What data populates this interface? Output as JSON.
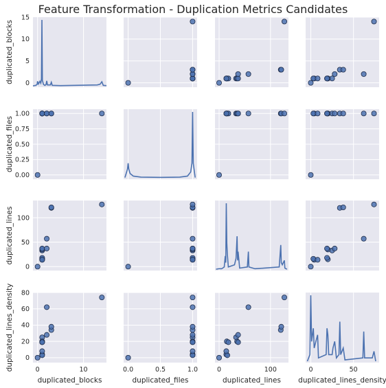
{
  "title": "Feature Transformation - Duplication Metrics Candidates",
  "chart_data": {
    "type": "scatter",
    "variables": [
      "duplicated_blocks",
      "duplicated_files",
      "duplicated_lines",
      "duplicated_lines_density"
    ],
    "axes": {
      "duplicated_blocks": {
        "range": [
          -1,
          15
        ],
        "ticks": [
          {
            "v": 0,
            "label": "0"
          },
          {
            "v": 10,
            "label": "10"
          }
        ],
        "y_ticks": [
          {
            "v": 0,
            "label": "0"
          },
          {
            "v": 5,
            "label": "5"
          },
          {
            "v": 10,
            "label": "10"
          },
          {
            "v": 15,
            "label": "15"
          }
        ]
      },
      "duplicated_files": {
        "range": [
          -0.07,
          1.07
        ],
        "ticks": [
          {
            "v": 0,
            "label": "0.0"
          },
          {
            "v": 0.5,
            "label": "0.5"
          },
          {
            "v": 1,
            "label": "1.0"
          }
        ],
        "y_ticks": [
          {
            "v": 0,
            "label": "0.00"
          },
          {
            "v": 0.25,
            "label": "0.25"
          },
          {
            "v": 0.5,
            "label": "0.50"
          },
          {
            "v": 0.75,
            "label": "0.75"
          },
          {
            "v": 1,
            "label": "1.00"
          }
        ]
      },
      "duplicated_lines": {
        "range": [
          -8,
          135
        ],
        "ticks": [
          {
            "v": 0,
            "label": "0"
          },
          {
            "v": 100,
            "label": "100"
          }
        ],
        "y_ticks": [
          {
            "v": 0,
            "label": "0"
          },
          {
            "v": 50,
            "label": "50"
          },
          {
            "v": 100,
            "label": "100"
          }
        ]
      },
      "duplicated_lines_density": {
        "range": [
          -6,
          80
        ],
        "ticks": [
          {
            "v": 0,
            "label": "0"
          },
          {
            "v": 50,
            "label": "50"
          }
        ],
        "y_ticks": [
          {
            "v": 0,
            "label": "0"
          },
          {
            "v": 20,
            "label": "20"
          },
          {
            "v": 40,
            "label": "40"
          },
          {
            "v": 60,
            "label": "60"
          },
          {
            "v": 80,
            "label": "80"
          }
        ]
      }
    },
    "points": [
      [
        0,
        0,
        0,
        0
      ],
      [
        1,
        1,
        14,
        4
      ],
      [
        1,
        1,
        15,
        20
      ],
      [
        1,
        1,
        16,
        3
      ],
      [
        1,
        1,
        18,
        19
      ],
      [
        1,
        1,
        33,
        25
      ],
      [
        1,
        1,
        35,
        20
      ],
      [
        1,
        1,
        37,
        19
      ],
      [
        1,
        1,
        14,
        8
      ],
      [
        2,
        1,
        37,
        28
      ],
      [
        2,
        1,
        57,
        62
      ],
      [
        3,
        1,
        120,
        34
      ],
      [
        3,
        1,
        121,
        38
      ],
      [
        14,
        1,
        127,
        74
      ]
    ],
    "diagonal_kde": {
      "duplicated_blocks": [
        [
          -1,
          0
        ],
        [
          -0.4,
          0.1
        ],
        [
          -0.1,
          0.3
        ],
        [
          0,
          1
        ],
        [
          0.2,
          0.4
        ],
        [
          0.5,
          1
        ],
        [
          0.7,
          0.6
        ],
        [
          0.85,
          1.5
        ],
        [
          0.95,
          14.6
        ],
        [
          1.05,
          1.2
        ],
        [
          1.3,
          0.3
        ],
        [
          1.6,
          0.1
        ],
        [
          1.85,
          0.3
        ],
        [
          2,
          1.1
        ],
        [
          2.15,
          0.2
        ],
        [
          2.8,
          0.2
        ],
        [
          3,
          0.8
        ],
        [
          3.2,
          0.1
        ],
        [
          5,
          0.05
        ],
        [
          13,
          0.2
        ],
        [
          13.6,
          0.35
        ],
        [
          14,
          0.9
        ],
        [
          14.3,
          0.1
        ],
        [
          15,
          0.05
        ]
      ],
      "duplicated_files": [
        [
          -0.05,
          0.02
        ],
        [
          -0.01,
          0.6
        ],
        [
          0,
          1.0
        ],
        [
          0.01,
          0.6
        ],
        [
          0.03,
          0.3
        ],
        [
          0.08,
          0.12
        ],
        [
          0.2,
          0.05
        ],
        [
          0.5,
          0.03
        ],
        [
          0.8,
          0.05
        ],
        [
          0.92,
          0.12
        ],
        [
          0.97,
          0.4
        ],
        [
          0.99,
          1.0
        ],
        [
          1,
          4.5
        ],
        [
          1.01,
          1.0
        ],
        [
          1.04,
          0.02
        ]
      ],
      "duplicated_lines": [
        [
          -6,
          0
        ],
        [
          0,
          0.02
        ],
        [
          5,
          0.02
        ],
        [
          10,
          0.1
        ],
        [
          12,
          0.6
        ],
        [
          13,
          0.3
        ],
        [
          14,
          3.0
        ],
        [
          15,
          1.2
        ],
        [
          16,
          0.7
        ],
        [
          18,
          0.1
        ],
        [
          30,
          0.2
        ],
        [
          33,
          0.5
        ],
        [
          35,
          1.5
        ],
        [
          36,
          0.4
        ],
        [
          37,
          0.8
        ],
        [
          40,
          0.05
        ],
        [
          55,
          0.1
        ],
        [
          57,
          0.8
        ],
        [
          58,
          0.1
        ],
        [
          70,
          0.02
        ],
        [
          117,
          0.1
        ],
        [
          120,
          1.1
        ],
        [
          121,
          0.3
        ],
        [
          123,
          0.2
        ],
        [
          127,
          0.4
        ],
        [
          128,
          0.05
        ],
        [
          132,
          0
        ]
      ],
      "duplicated_lines_density": [
        [
          -4,
          0
        ],
        [
          -1,
          0.1
        ],
        [
          0,
          1.0
        ],
        [
          1,
          0.3
        ],
        [
          3,
          0.5
        ],
        [
          4,
          0.2
        ],
        [
          8,
          0.4
        ],
        [
          9,
          0.05
        ],
        [
          18,
          0.1
        ],
        [
          19,
          0.5
        ],
        [
          20,
          0.4
        ],
        [
          21,
          0.1
        ],
        [
          25,
          0.1
        ],
        [
          26,
          0.2
        ],
        [
          28,
          0.3
        ],
        [
          30,
          0.05
        ],
        [
          33,
          0.1
        ],
        [
          34,
          0.6
        ],
        [
          35,
          0.1
        ],
        [
          38,
          0.2
        ],
        [
          40,
          0.02
        ],
        [
          61,
          0.05
        ],
        [
          62,
          0.45
        ],
        [
          63,
          0.05
        ],
        [
          72,
          0.05
        ],
        [
          74,
          0.15
        ],
        [
          76,
          0
        ]
      ]
    },
    "grid": true,
    "style": {
      "facecolor": "#e6e6ef",
      "gridcolor": "#ffffff",
      "pointcolor": "#4c72b0",
      "edgecolor": "#1f2d4a",
      "linecolor": "#4c72b0"
    }
  }
}
